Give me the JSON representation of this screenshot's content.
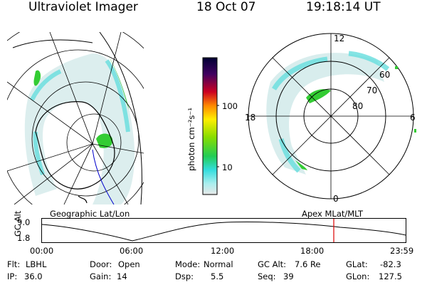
{
  "header": {
    "instrument": "Ultraviolet Imager",
    "date": "18 Oct 07",
    "time": "19:18:14 UT"
  },
  "colorbar": {
    "label": "photon cm⁻²s⁻¹",
    "ticks": [
      "100",
      "10"
    ]
  },
  "polar_plot": {
    "mlt_labels": [
      "12",
      "18",
      "6",
      "0"
    ],
    "lat_labels": [
      "60",
      "70",
      "80"
    ]
  },
  "left_map_label": "Geographic Lat/Lon",
  "right_map_label": "Apex MLat/MLT",
  "timeline": {
    "ylabel": "GC Alt",
    "yticks": [
      "9.0",
      "1.8"
    ],
    "xticks": [
      "00:00",
      "06:00",
      "12:00",
      "18:00",
      "23:59"
    ],
    "current_marker": "19:18"
  },
  "status": {
    "flt_label": "Flt:",
    "flt_value": "LBHL",
    "ip_label": "IP:",
    "ip_value": "36.0",
    "door_label": "Door:",
    "door_value": "Open",
    "gain_label": "Gain:",
    "gain_value": "14",
    "mode_label": "Mode:",
    "mode_value": "Normal",
    "dsp_label": "Dsp:",
    "dsp_value": "5.5",
    "gcalt_label": "GC Alt:",
    "gcalt_value": "7.6 Re",
    "seq_label": "Seq:",
    "seq_value": "39",
    "glat_label": "GLat:",
    "glat_value": "-82.3",
    "glon_label": "GLon:",
    "glon_value": "127.5"
  },
  "colors": {
    "aurora_green": "#33cc33",
    "aurora_cyan": "#66dddd",
    "marker_red": "#dd0000",
    "coast_blue": "#0000cc"
  }
}
